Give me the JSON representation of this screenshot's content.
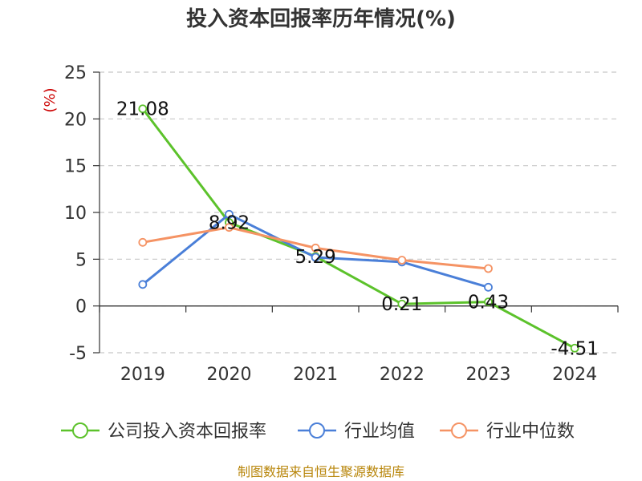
{
  "chart_data": {
    "type": "line",
    "title": "投入资本回报率历年情况(%)",
    "ylabel": "(%)",
    "categories": [
      "2019",
      "2020",
      "2021",
      "2022",
      "2023",
      "2024"
    ],
    "ylim": [
      -5,
      25
    ],
    "yticks": [
      25,
      20,
      15,
      10,
      5,
      0,
      -5
    ],
    "grid": true,
    "legend_position": "bottom",
    "series": [
      {
        "name": "公司投入资本回报率",
        "color": "#5cc22b",
        "values": [
          21.08,
          8.92,
          5.29,
          0.21,
          0.43,
          -4.51
        ],
        "labels": [
          "21.08",
          "8.92",
          "5.29",
          "0.21",
          "0.43",
          "-4.51"
        ]
      },
      {
        "name": "行业均值",
        "color": "#4a7fd8",
        "values": [
          2.3,
          9.8,
          5.2,
          4.7,
          2.0,
          null
        ]
      },
      {
        "name": "行业中位数",
        "color": "#f59364",
        "values": [
          6.8,
          8.4,
          6.2,
          4.9,
          4.0,
          null
        ]
      }
    ],
    "source": "制图数据来自恒生聚源数据库"
  }
}
